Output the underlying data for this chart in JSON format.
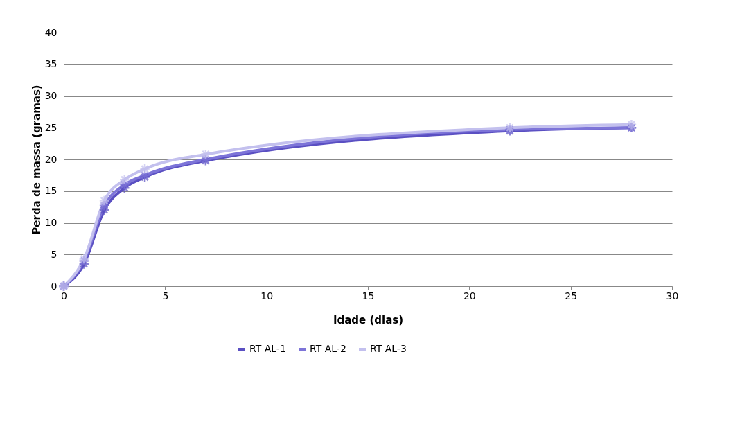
{
  "chart_data": {
    "type": "line",
    "xlabel": "Idade (dias)",
    "ylabel": "Perda de massa (gramas)",
    "x": [
      0,
      1,
      2,
      3,
      4,
      7,
      22,
      28
    ],
    "series": [
      {
        "name": "RT AL-1",
        "color": "#5a4fc2",
        "values": [
          0,
          3.5,
          12,
          15.5,
          17.2,
          19.8,
          24.5,
          25
        ]
      },
      {
        "name": "RT AL-2",
        "color": "#7d74d8",
        "values": [
          0,
          4,
          12.7,
          16,
          17.5,
          20,
          24.7,
          25
        ]
      },
      {
        "name": "RT AL-3",
        "color": "#c3c0ee",
        "values": [
          0,
          4.3,
          13.5,
          16.8,
          18.5,
          20.8,
          25,
          25.5
        ]
      }
    ],
    "xlim": [
      0,
      30
    ],
    "xticks": [
      0,
      5,
      10,
      15,
      20,
      25,
      30
    ],
    "ylim": [
      0,
      40
    ],
    "yticks": [
      0,
      5,
      10,
      15,
      20,
      25,
      30,
      35,
      40
    ],
    "grid": "y",
    "legend": "bottom",
    "marker": "cross",
    "line_style": "solid"
  }
}
